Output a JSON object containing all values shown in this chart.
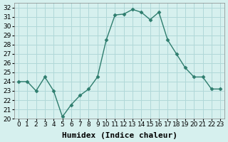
{
  "x": [
    0,
    1,
    2,
    3,
    4,
    5,
    6,
    7,
    8,
    9,
    10,
    11,
    12,
    13,
    14,
    15,
    16,
    17,
    18,
    19,
    20,
    21,
    22,
    23
  ],
  "y": [
    24,
    24,
    23,
    24.5,
    23,
    20.2,
    21.5,
    22.5,
    23.2,
    24.5,
    28.5,
    31.2,
    31.3,
    31.8,
    31.5,
    30.7,
    31.5,
    28.5,
    27,
    25.5,
    24.5,
    24.5,
    23.2,
    23.2
  ],
  "line_color": "#2e7d6e",
  "marker": "D",
  "marker_size": 2.5,
  "bg_color": "#d6f0ee",
  "grid_color": "#b0d8d8",
  "xlabel": "Humidex (Indice chaleur)",
  "xlabel_fontsize": 8,
  "tick_fontsize": 6.5,
  "ylim": [
    20,
    32.5
  ],
  "xlim": [
    -0.5,
    23.5
  ],
  "yticks": [
    20,
    21,
    22,
    23,
    24,
    25,
    26,
    27,
    28,
    29,
    30,
    31,
    32
  ],
  "xticks": [
    0,
    1,
    2,
    3,
    4,
    5,
    6,
    7,
    8,
    9,
    10,
    11,
    12,
    13,
    14,
    15,
    16,
    17,
    18,
    19,
    20,
    21,
    22,
    23
  ]
}
